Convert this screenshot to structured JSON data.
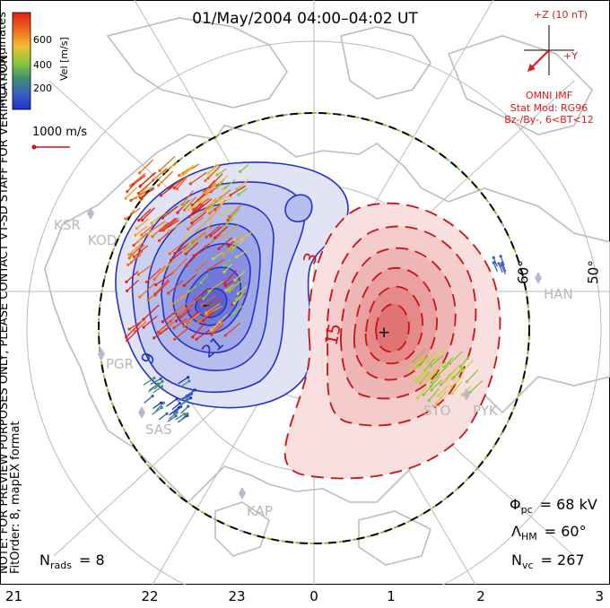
{
  "title": "01/May/2004 04:00–04:02 UT",
  "note_vertical": "NOTE: FOR PREVIEW PURPOSES ONLY, PLEASE CONTACT VT-SD STAFF FOR VERIFICATION.",
  "fit_order_vertical": "FitOrder: 8, mapEX format",
  "coord_label": "MLT coordinates",
  "colorbar": {
    "label": "Vel [m/s]",
    "ticks": [
      "600",
      "400",
      "200"
    ],
    "colors": [
      "#e0201a",
      "#f07a1c",
      "#f0c030",
      "#8ac83c",
      "#3f8f6e",
      "#3a5fc0",
      "#1c2fd0"
    ]
  },
  "reference_vector_label": "1000 m/s",
  "imf": {
    "title": "+Z (10 nT)",
    "y_label": "+Y",
    "source": "OMNI IMF",
    "stat_mod": "Stat Mod: RG96",
    "condition": "Bz-/By-, 6<BT<12",
    "color": "#e01818"
  },
  "stats": {
    "phi_pc_label": "Φ",
    "phi_pc_sub": "pc",
    "phi_pc_value": "= 68 kV",
    "lambda_hm_label": "Λ",
    "lambda_hm_sub": "HM",
    "lambda_hm_value": "= 60°",
    "n_vc_label": "N",
    "n_vc_sub": "vc",
    "n_vc_value": "= 267",
    "n_rads_label": "N",
    "n_rads_sub": "rads",
    "n_rads_value": "= 8"
  },
  "latitude_labels": [
    "60°",
    "50°"
  ],
  "mlt_axis_labels": [
    "21",
    "22",
    "23",
    "0",
    "1",
    "2",
    "3"
  ],
  "contour_labels": {
    "neg_9": "9",
    "neg_21": "21",
    "pos_3": "3",
    "pos_15": "15"
  },
  "radar_labels": [
    "KSR",
    "KOD",
    "PGR",
    "SAS",
    "KAP",
    "HAN",
    "STO",
    "PYK"
  ],
  "colors": {
    "negative_cell": "#2233cc",
    "positive_cell": "#cc1111",
    "land": "#c9c9c9",
    "grid": "#bbbbbb",
    "hm_boundary_dash": "#7dc242"
  }
}
